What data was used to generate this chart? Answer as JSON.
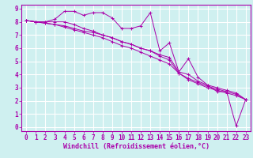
{
  "bg_color": "#cff0f0",
  "grid_color": "#ffffff",
  "line_color": "#aa00aa",
  "spine_color": "#aa00aa",
  "marker": "+",
  "xlabel": "Windchill (Refroidissement éolien,°C)",
  "xlim": [
    -0.5,
    23.5
  ],
  "ylim": [
    -0.3,
    9.3
  ],
  "xticks": [
    0,
    1,
    2,
    3,
    4,
    5,
    6,
    7,
    8,
    9,
    10,
    11,
    12,
    13,
    14,
    15,
    16,
    17,
    18,
    19,
    20,
    21,
    22,
    23
  ],
  "yticks": [
    0,
    1,
    2,
    3,
    4,
    5,
    6,
    7,
    8,
    9
  ],
  "series": [
    [
      8.1,
      8.0,
      8.0,
      8.2,
      8.8,
      8.8,
      8.5,
      8.7,
      8.7,
      8.3,
      7.5,
      7.5,
      7.7,
      8.7,
      5.8,
      6.4,
      4.2,
      5.2,
      3.8,
      3.2,
      2.7,
      2.7,
      0.1,
      2.1
    ],
    [
      8.1,
      8.0,
      8.0,
      8.0,
      8.0,
      7.8,
      7.5,
      7.3,
      7.0,
      6.8,
      6.5,
      6.3,
      6.0,
      5.8,
      5.5,
      5.3,
      4.2,
      4.0,
      3.5,
      3.2,
      3.0,
      2.8,
      2.6,
      2.1
    ],
    [
      8.1,
      8.0,
      7.9,
      7.8,
      7.7,
      7.5,
      7.3,
      7.2,
      7.0,
      6.8,
      6.5,
      6.3,
      6.0,
      5.8,
      5.4,
      5.1,
      4.1,
      3.7,
      3.4,
      3.1,
      2.9,
      2.7,
      2.5,
      2.1
    ],
    [
      8.1,
      8.0,
      7.9,
      7.8,
      7.6,
      7.4,
      7.2,
      7.0,
      6.8,
      6.5,
      6.2,
      6.0,
      5.7,
      5.4,
      5.1,
      4.8,
      4.1,
      3.6,
      3.3,
      3.0,
      2.8,
      2.6,
      2.4,
      2.1
    ]
  ],
  "tick_fontsize": 5.5,
  "xlabel_fontsize": 6.0,
  "linewidth": 0.7,
  "markersize": 2.5,
  "markeredgewidth": 0.7
}
